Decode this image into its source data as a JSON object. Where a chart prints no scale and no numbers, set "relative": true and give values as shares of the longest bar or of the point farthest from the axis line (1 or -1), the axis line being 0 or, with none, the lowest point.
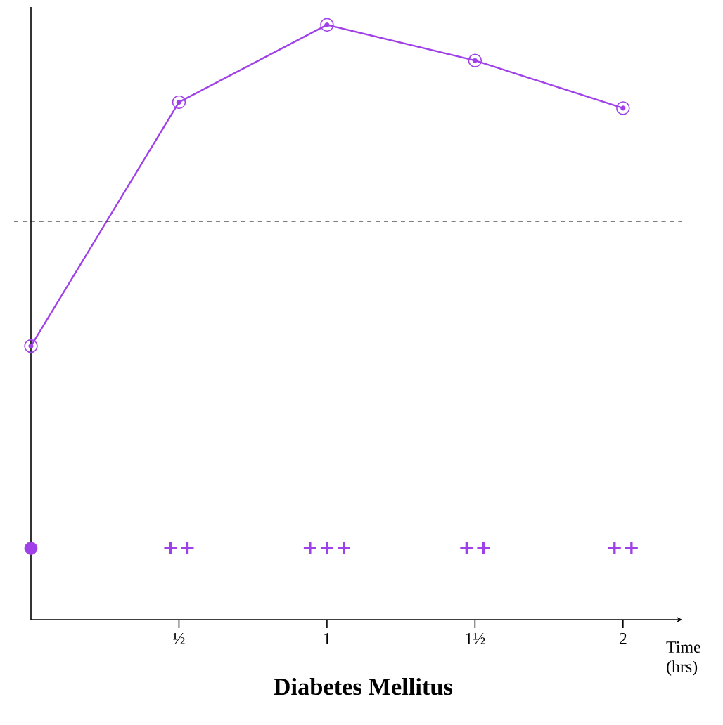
{
  "chart_data": {
    "type": "line",
    "title": "Diabetes Mellitus",
    "xlabel": "Time (hrs)",
    "relative": true,
    "xlim": [
      0,
      2.2
    ],
    "xticks": [
      {
        "value": 0.5,
        "label": "½"
      },
      {
        "value": 1,
        "label": "1"
      },
      {
        "value": 1.5,
        "label": "1½"
      },
      {
        "value": 2,
        "label": "2"
      }
    ],
    "series": [
      {
        "color": "#a040e8",
        "x": [
          0,
          0.5,
          1,
          1.5,
          2
        ],
        "values": [
          0.46,
          0.87,
          1,
          0.94,
          0.86
        ],
        "marker": "circle"
      },
      {
        "type": "scatter",
        "color": "#a040e8",
        "x": [
          0
        ],
        "values": [
          0.12
        ],
        "marker": "circle"
      }
    ],
    "ref_lines": [
      {
        "axis": "y",
        "value": 0.67,
        "color": "#000000",
        "line_style": "dashed"
      }
    ],
    "annotations": [
      "++",
      "+++",
      "++",
      "++"
    ]
  }
}
